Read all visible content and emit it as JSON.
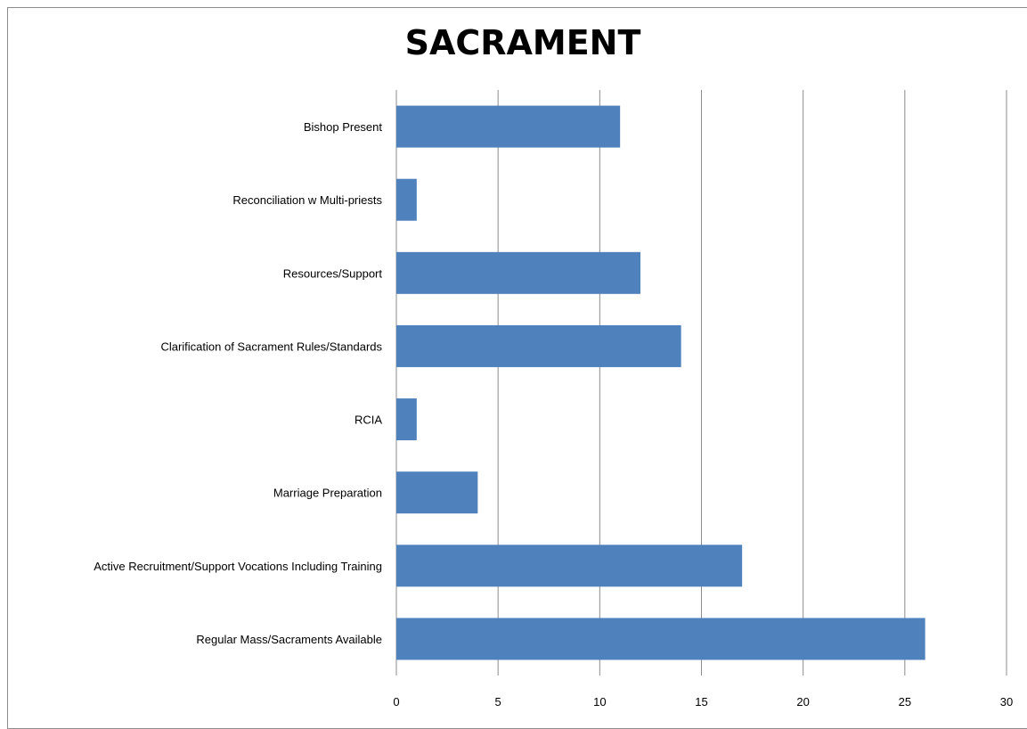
{
  "chart_data": {
    "type": "bar",
    "orientation": "horizontal",
    "title": "SACRAMENT",
    "categories": [
      "Bishop Present",
      "Reconciliation w Multi-priests",
      "Resources/Support",
      "Clarification of Sacrament Rules/Standards",
      "RCIA",
      "Marriage Preparation",
      "Active Recruitment/Support Vocations Including Training",
      "Regular Mass/Sacraments Available"
    ],
    "values": [
      11,
      1,
      12,
      14,
      1,
      4,
      17,
      26
    ],
    "xlim": [
      0,
      30
    ],
    "ticks": [
      "0",
      "5",
      "10",
      "15",
      "20",
      "25",
      "30"
    ],
    "grid": true,
    "legend": "none",
    "bar_color": "#4f81bd",
    "grid_color": "#8c8c8c"
  }
}
